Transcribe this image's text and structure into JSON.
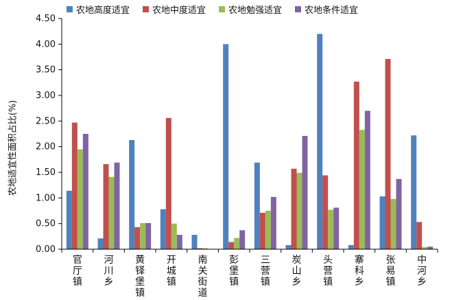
{
  "chart_data": {
    "type": "bar",
    "title": "",
    "xlabel": "",
    "ylabel": "农地适宜性面积占比(%)",
    "ylim": [
      0,
      4.5
    ],
    "yticks": [
      "0.00",
      "0.50",
      "1.00",
      "1.50",
      "2.00",
      "2.50",
      "3.00",
      "3.50",
      "4.00",
      "4.50"
    ],
    "grid": false,
    "legend_position": "top",
    "categories": [
      "官厅镇",
      "河川乡",
      "黄铎堡镇",
      "开城镇",
      "南关街道",
      "彭堡镇",
      "三营镇",
      "炭山乡",
      "头营镇",
      "寨科乡",
      "张易镇",
      "中河乡"
    ],
    "series": [
      {
        "name": "农地高度适宜",
        "color": "#4f81bd",
        "values": [
          1.14,
          0.21,
          2.13,
          0.78,
          0.28,
          4.0,
          1.69,
          0.08,
          4.2,
          0.08,
          1.03,
          2.22
        ]
      },
      {
        "name": "农地中度适宜",
        "color": "#c0504d",
        "values": [
          2.47,
          1.66,
          0.43,
          2.56,
          0.02,
          0.14,
          0.71,
          1.57,
          1.44,
          3.27,
          3.71,
          0.53
        ]
      },
      {
        "name": "农地勉强适宜",
        "color": "#9bbb59",
        "values": [
          1.95,
          1.41,
          0.51,
          0.5,
          0.02,
          0.22,
          0.75,
          1.49,
          0.77,
          2.33,
          0.98,
          0.04
        ]
      },
      {
        "name": "农地条件适宜",
        "color": "#8064a2",
        "values": [
          2.25,
          1.69,
          0.51,
          0.28,
          0.0,
          0.37,
          1.02,
          2.21,
          0.81,
          2.7,
          1.37,
          0.05
        ]
      }
    ]
  }
}
